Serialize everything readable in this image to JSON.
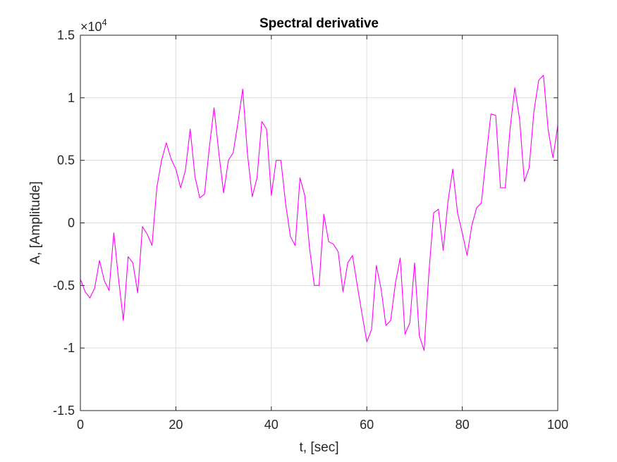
{
  "chart_data": {
    "type": "line",
    "title": "Spectral derivative",
    "xlabel": "t, [sec]",
    "ylabel": "A, [Amplitude]",
    "exponent_label": "×10",
    "exponent_power": "4",
    "xlim": [
      0,
      100
    ],
    "ylim": [
      -1.5,
      1.5
    ],
    "y_scale_factor": 10000,
    "grid": true,
    "line_color": "#ff00ff",
    "xticks": [
      0,
      20,
      40,
      60,
      80,
      100
    ],
    "xtick_labels": [
      "0",
      "20",
      "40",
      "60",
      "80",
      "100"
    ],
    "yticks": [
      -1.5,
      -1,
      -0.5,
      0,
      0.5,
      1,
      1.5
    ],
    "ytick_labels": [
      "-1.5",
      "-1",
      "-0.5",
      "0",
      "0.5",
      "1",
      "1.5"
    ],
    "series": [
      {
        "x": [
          0,
          1,
          2,
          3,
          4,
          5,
          6,
          7,
          8,
          9,
          10,
          11,
          12,
          13,
          14,
          15,
          16,
          17,
          18,
          19,
          20,
          21,
          22,
          23,
          24,
          25,
          26,
          27,
          28,
          29,
          30,
          31,
          32,
          33,
          34,
          35,
          36,
          37,
          38,
          39,
          40,
          41,
          42,
          43,
          44,
          45,
          46,
          47,
          48,
          49,
          50,
          51,
          52,
          53,
          54,
          55,
          56,
          57,
          58,
          59,
          60,
          61,
          62,
          63,
          64,
          65,
          66,
          67,
          68,
          69,
          70,
          71,
          72,
          73,
          74,
          75,
          76,
          77,
          78,
          79,
          80,
          81,
          82,
          83,
          84,
          85,
          86,
          87,
          88,
          89,
          90,
          91,
          92,
          93,
          94,
          95,
          96,
          97,
          98,
          99,
          100
        ],
        "y": [
          -0.45,
          -0.55,
          -0.6,
          -0.52,
          -0.3,
          -0.46,
          -0.54,
          -0.08,
          -0.45,
          -0.78,
          -0.27,
          -0.32,
          -0.56,
          -0.03,
          -0.09,
          -0.18,
          0.28,
          0.5,
          0.64,
          0.51,
          0.43,
          0.28,
          0.42,
          0.75,
          0.37,
          0.2,
          0.23,
          0.6,
          0.92,
          0.56,
          0.24,
          0.5,
          0.56,
          0.8,
          1.07,
          0.55,
          0.21,
          0.36,
          0.81,
          0.75,
          0.22,
          0.5,
          0.5,
          0.15,
          -0.11,
          -0.18,
          0.36,
          0.22,
          -0.2,
          -0.5,
          -0.5,
          0.07,
          -0.15,
          -0.17,
          -0.23,
          -0.55,
          -0.32,
          -0.26,
          -0.5,
          -0.73,
          -0.95,
          -0.85,
          -0.34,
          -0.53,
          -0.82,
          -0.78,
          -0.48,
          -0.28,
          -0.89,
          -0.8,
          -0.32,
          -0.9,
          -1.02,
          -0.4,
          0.08,
          0.11,
          -0.22,
          0.17,
          0.43,
          0.08,
          -0.08,
          -0.26,
          -0.02,
          0.12,
          0.16,
          0.53,
          0.87,
          0.86,
          0.28,
          0.28,
          0.75,
          1.08,
          0.83,
          0.33,
          0.44,
          0.89,
          1.14,
          1.18,
          0.74,
          0.52,
          0.78
        ]
      }
    ]
  }
}
